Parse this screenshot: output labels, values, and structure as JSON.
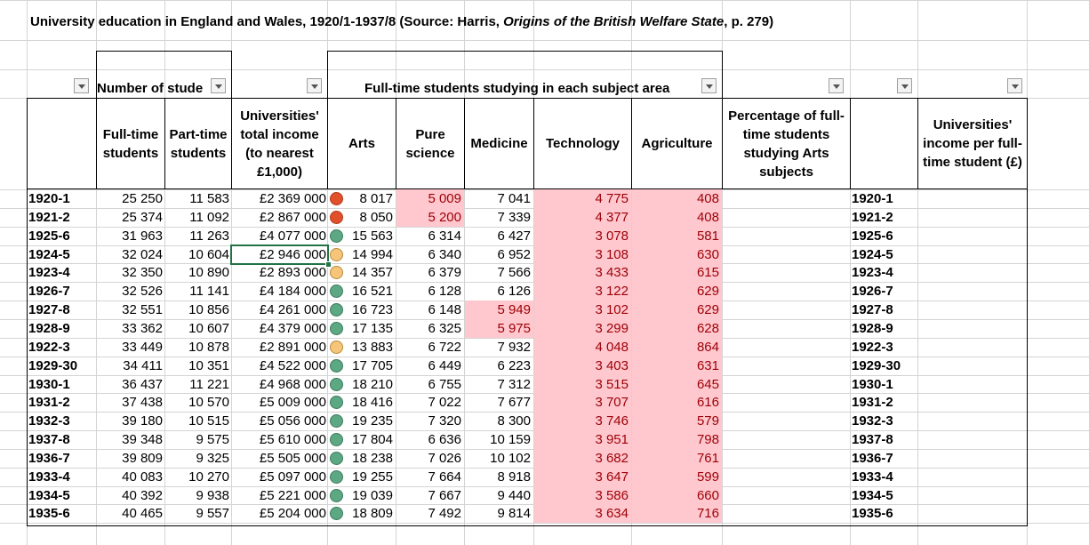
{
  "title": {
    "prefix": "University education in England and Wales, 1920/1-1937/8 (Source: Harris, ",
    "italic": "Origins of the British Welfare State",
    "suffix": ", p. 279)"
  },
  "group_headers": {
    "numbers": "Number of stude",
    "subjects": "Full-time students studying in each subject area"
  },
  "column_headers": {
    "fulltime": "Full-time students",
    "parttime": "Part-time students",
    "income": "Universities' total income (to nearest £1,000)",
    "arts": "Arts",
    "pure": "Pure science",
    "medicine": "Medicine",
    "technology": "Technology",
    "agriculture": "Agriculture",
    "pct_arts": "Percentage of full-time students studying Arts subjects",
    "income_per": "Universities' income per full-time student (£)"
  },
  "rows": [
    {
      "year": "1920-1",
      "ft": "25 250",
      "pt": "11 583",
      "income": "£2 369 000",
      "icon": "red",
      "arts": "8 017",
      "pure": "5 009",
      "med": "7 041",
      "tech": "4 775",
      "agri": "408",
      "year2": "1920-1"
    },
    {
      "year": "1921-2",
      "ft": "25 374",
      "pt": "11 092",
      "income": "£2 867 000",
      "icon": "red",
      "arts": "8 050",
      "pure": "5 200",
      "med": "7 339",
      "tech": "4 377",
      "agri": "408",
      "year2": "1921-2"
    },
    {
      "year": "1925-6",
      "ft": "31 963",
      "pt": "11 263",
      "income": "£4 077 000",
      "icon": "green",
      "arts": "15 563",
      "pure": "6 314",
      "med": "6 427",
      "tech": "3 078",
      "agri": "581",
      "year2": "1925-6"
    },
    {
      "year": "1924-5",
      "ft": "32 024",
      "pt": "10 604",
      "income": "£2 946 000",
      "icon": "yellow",
      "arts": "14 994",
      "pure": "6 340",
      "med": "6 952",
      "tech": "3 108",
      "agri": "630",
      "year2": "1924-5"
    },
    {
      "year": "1923-4",
      "ft": "32 350",
      "pt": "10 890",
      "income": "£2 893 000",
      "icon": "yellow",
      "arts": "14 357",
      "pure": "6 379",
      "med": "7 566",
      "tech": "3 433",
      "agri": "615",
      "year2": "1923-4"
    },
    {
      "year": "1926-7",
      "ft": "32 526",
      "pt": "11 141",
      "income": "£4 184 000",
      "icon": "green",
      "arts": "16 521",
      "pure": "6 128",
      "med": "6 126",
      "tech": "3 122",
      "agri": "629",
      "year2": "1926-7"
    },
    {
      "year": "1927-8",
      "ft": "32 551",
      "pt": "10 856",
      "income": "£4 261 000",
      "icon": "green",
      "arts": "16 723",
      "pure": "6 148",
      "med": "5 949",
      "tech": "3 102",
      "agri": "629",
      "year2": "1927-8"
    },
    {
      "year": "1928-9",
      "ft": "33 362",
      "pt": "10 607",
      "income": "£4 379 000",
      "icon": "green",
      "arts": "17 135",
      "pure": "6 325",
      "med": "5 975",
      "tech": "3 299",
      "agri": "628",
      "year2": "1928-9"
    },
    {
      "year": "1922-3",
      "ft": "33 449",
      "pt": "10 878",
      "income": "£2 891 000",
      "icon": "yellow",
      "arts": "13 883",
      "pure": "6 722",
      "med": "7 932",
      "tech": "4 048",
      "agri": "864",
      "year2": "1922-3"
    },
    {
      "year": "1929-30",
      "ft": "34 411",
      "pt": "10 351",
      "income": "£4 522 000",
      "icon": "green",
      "arts": "17 705",
      "pure": "6 449",
      "med": "6 223",
      "tech": "3 403",
      "agri": "631",
      "year2": "1929-30"
    },
    {
      "year": "1930-1",
      "ft": "36 437",
      "pt": "11 221",
      "income": "£4 968 000",
      "icon": "green",
      "arts": "18 210",
      "pure": "6 755",
      "med": "7 312",
      "tech": "3 515",
      "agri": "645",
      "year2": "1930-1"
    },
    {
      "year": "1931-2",
      "ft": "37 438",
      "pt": "10 570",
      "income": "£5 009 000",
      "icon": "green",
      "arts": "18 416",
      "pure": "7 022",
      "med": "7 677",
      "tech": "3 707",
      "agri": "616",
      "year2": "1931-2"
    },
    {
      "year": "1932-3",
      "ft": "39 180",
      "pt": "10 515",
      "income": "£5 056 000",
      "icon": "green",
      "arts": "19 235",
      "pure": "7 320",
      "med": "8 300",
      "tech": "3 746",
      "agri": "579",
      "year2": "1932-3"
    },
    {
      "year": "1937-8",
      "ft": "39 348",
      "pt": "9 575",
      "income": "£5 610 000",
      "icon": "green",
      "arts": "17 804",
      "pure": "6 636",
      "med": "10 159",
      "tech": "3 951",
      "agri": "798",
      "year2": "1937-8"
    },
    {
      "year": "1936-7",
      "ft": "39 809",
      "pt": "9 325",
      "income": "£5 505 000",
      "icon": "green",
      "arts": "18 238",
      "pure": "7 026",
      "med": "10 102",
      "tech": "3 682",
      "agri": "761",
      "year2": "1936-7"
    },
    {
      "year": "1933-4",
      "ft": "40 083",
      "pt": "10 270",
      "income": "£5 097 000",
      "icon": "green",
      "arts": "19 255",
      "pure": "7 664",
      "med": "8 918",
      "tech": "3 647",
      "agri": "599",
      "year2": "1933-4"
    },
    {
      "year": "1934-5",
      "ft": "40 392",
      "pt": "9 938",
      "income": "£5 221 000",
      "icon": "green",
      "arts": "19 039",
      "pure": "7 667",
      "med": "9 440",
      "tech": "3 586",
      "agri": "660",
      "year2": "1934-5"
    },
    {
      "year": "1935-6",
      "ft": "40 465",
      "pt": "9 557",
      "income": "£5 204 000",
      "icon": "green",
      "arts": "18 809",
      "pure": "7 492",
      "med": "9 814",
      "tech": "3 634",
      "agri": "716",
      "year2": "1935-6"
    }
  ],
  "highlights": {
    "pure_rows": [
      0,
      1
    ],
    "med_rows": [
      6,
      7
    ],
    "tech_all": true,
    "agri_all": true
  },
  "selected_cell": {
    "row": 3,
    "column": "income"
  },
  "colors": {
    "highlight_fill": "#ffc7ce",
    "highlight_text": "#9c0006",
    "icon_red": "#e0502a",
    "icon_yellow": "#f6c57a",
    "icon_green": "#5ba883",
    "selection": "#217346"
  }
}
